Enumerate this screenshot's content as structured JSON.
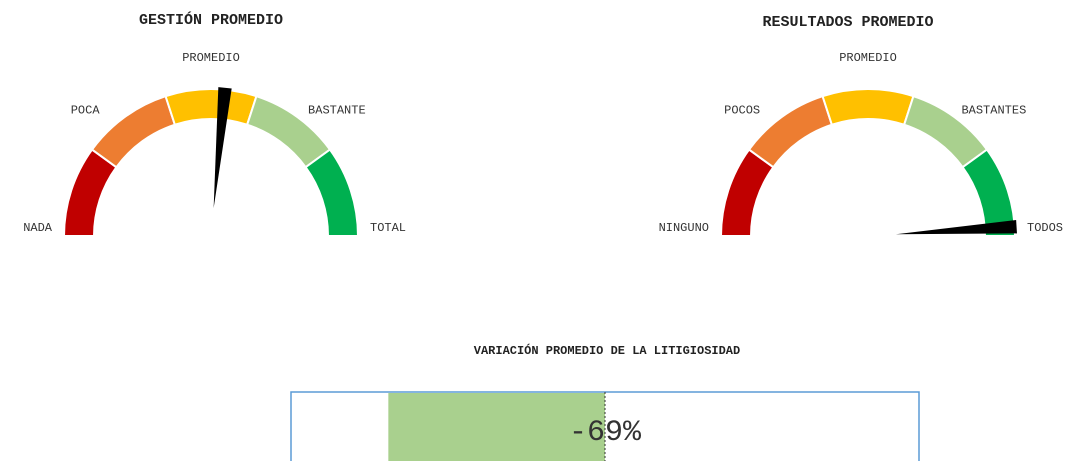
{
  "chart_data": [
    {
      "type": "gauge",
      "title": "GESTIÓN PROMEDIO",
      "categories": [
        "NADA",
        "POCA",
        "PROMEDIO",
        "BASTANTE",
        "TOTAL"
      ],
      "values": [
        20,
        20,
        20,
        20,
        20
      ],
      "colors": [
        "#c00000",
        "#ed7d31",
        "#ffc000",
        "#a9d08e",
        "#00b050"
      ],
      "needle": 53,
      "needle_color": "#000000"
    },
    {
      "type": "gauge",
      "title": "RESULTADOS PROMEDIO",
      "categories": [
        "NINGUNO",
        "POCOS",
        "PROMEDIO",
        "BASTANTES",
        "TODOS"
      ],
      "values": [
        20,
        20,
        20,
        20,
        20
      ],
      "colors": [
        "#c00000",
        "#ed7d31",
        "#ffc000",
        "#a9d08e",
        "#00b050"
      ],
      "needle": 98,
      "needle_color": "#000000"
    },
    {
      "type": "hbar",
      "title": "VARIACIÓN PROMEDIO DE LA LITIGIOSIDAD",
      "values": [
        -69
      ],
      "value_labels": [
        "-69%"
      ],
      "xlim": [
        -100,
        100
      ],
      "color": "#a9d08e"
    }
  ]
}
